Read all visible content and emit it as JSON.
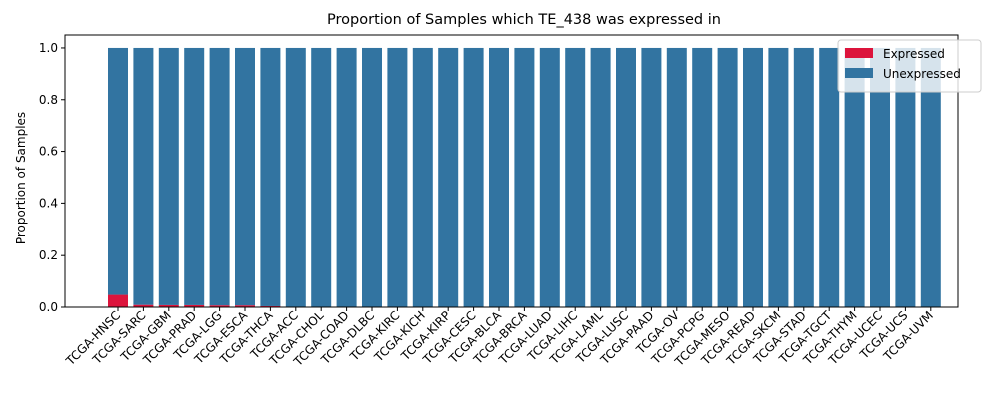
{
  "chart_data": {
    "type": "bar",
    "stacked": true,
    "title": "Proportion of Samples which TE_438 was expressed in",
    "xlabel": "",
    "ylabel": "Proportion of Samples",
    "ylim": [
      0,
      1.05
    ],
    "yticks": [
      "0.0",
      "0.2",
      "0.4",
      "0.6",
      "0.8",
      "1.0"
    ],
    "grid": false,
    "legend_position": "top-right",
    "categories": [
      "TCGA-HNSC",
      "TCGA-SARC",
      "TCGA-GBM",
      "TCGA-PRAD",
      "TCGA-LGG",
      "TCGA-ESCA",
      "TCGA-THCA",
      "TCGA-ACC",
      "TCGA-CHOL",
      "TCGA-COAD",
      "TCGA-DLBC",
      "TCGA-KIRC",
      "TCGA-KICH",
      "TCGA-KIRP",
      "TCGA-CESC",
      "TCGA-BLCA",
      "TCGA-BRCA",
      "TCGA-LUAD",
      "TCGA-LIHC",
      "TCGA-LAML",
      "TCGA-LUSC",
      "TCGA-PAAD",
      "TCGA-OV",
      "TCGA-PCPG",
      "TCGA-MESO",
      "TCGA-READ",
      "TCGA-SKCM",
      "TCGA-STAD",
      "TCGA-TGCT",
      "TCGA-THYM",
      "TCGA-UCEC",
      "TCGA-UCS",
      "TCGA-UVM"
    ],
    "series": [
      {
        "name": "Expressed",
        "color": "#dc143c",
        "values": [
          0.048,
          0.009,
          0.008,
          0.008,
          0.007,
          0.007,
          0.004,
          0,
          0,
          0,
          0,
          0,
          0,
          0,
          0,
          0,
          0,
          0,
          0,
          0,
          0,
          0,
          0,
          0,
          0,
          0,
          0,
          0,
          0,
          0,
          0,
          0,
          0
        ]
      },
      {
        "name": "Unexpressed",
        "color": "#3274a1",
        "values": [
          0.952,
          0.991,
          0.992,
          0.992,
          0.993,
          0.993,
          0.996,
          1,
          1,
          1,
          1,
          1,
          1,
          1,
          1,
          1,
          1,
          1,
          1,
          1,
          1,
          1,
          1,
          1,
          1,
          1,
          1,
          1,
          1,
          1,
          1,
          1,
          1
        ]
      }
    ]
  }
}
